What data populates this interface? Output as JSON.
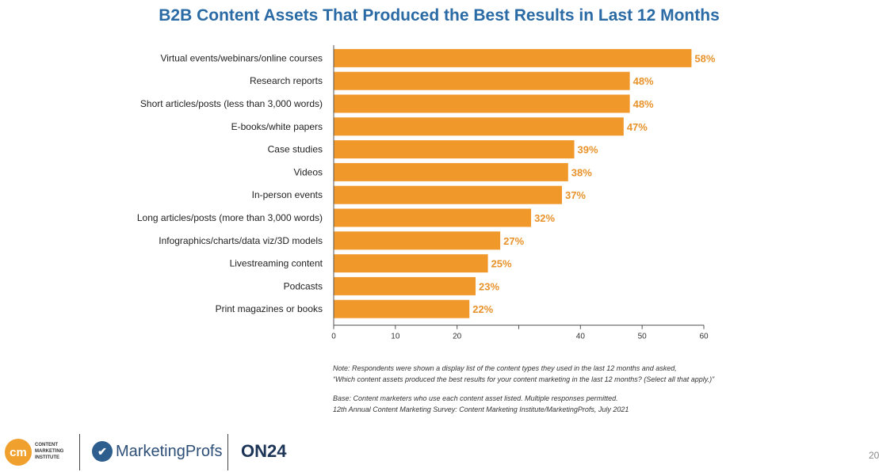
{
  "chart_data": {
    "type": "bar",
    "orientation": "horizontal",
    "title": "B2B Content Assets That Produced the Best Results in Last 12 Months",
    "categories": [
      "Virtual events/webinars/online courses",
      "Research reports",
      "Short articles/posts (less than 3,000 words)",
      "E-books/white papers",
      "Case studies",
      "Videos",
      "In-person events",
      "Long articles/posts (more than 3,000 words)",
      "Infographics/charts/data viz/3D models",
      "Livestreaming content",
      "Podcasts",
      "Print magazines or books"
    ],
    "values": [
      58,
      48,
      48,
      47,
      39,
      38,
      37,
      32,
      27,
      25,
      23,
      22
    ],
    "value_labels": [
      "58%",
      "48%",
      "48%",
      "47%",
      "39%",
      "38%",
      "37%",
      "32%",
      "27%",
      "25%",
      "23%",
      "22%"
    ],
    "xlim": [
      0,
      60
    ],
    "x_ticks": [
      0,
      10,
      20,
      30,
      40,
      50,
      60
    ],
    "x_tick_labels": [
      "0",
      "10",
      "20",
      "",
      "40",
      "50",
      "60"
    ],
    "grid": false,
    "bar_color": "#f0982a",
    "label_color": "#e8922a"
  },
  "notes": {
    "line1": "Note: Respondents were shown a display list of the content types they used in the last 12 months and asked,",
    "line2": "“Which content assets produced the best results for your content marketing in the last 12 months? (Select all that apply.)”",
    "line3": "Base: Content marketers who use each content asset listed. Multiple responses permitted.",
    "line4": "12th Annual Content Marketing Survey: Content Marketing Institute/MarketingProfs, July 2021"
  },
  "logos": {
    "cmi_mark": "cm",
    "cmi_line1": "CONTENT",
    "cmi_line2": "MARKETING",
    "cmi_line3": "INSTITUTE",
    "mp_name": "MarketingProfs",
    "on24_name": "ON24"
  },
  "page_number": "20"
}
